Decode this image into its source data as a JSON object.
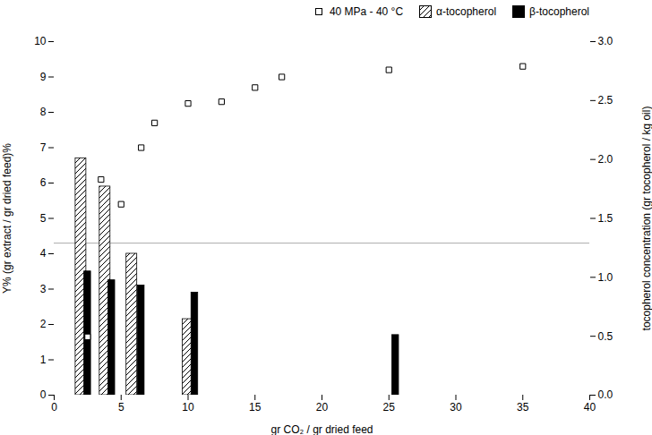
{
  "chart_data": {
    "type": "bar",
    "xlabel": "gr CO₂ / gr dried feed",
    "ylabel": "Y% (gr extract / gr dried feed)%",
    "y2label": "tocopherol concentration (gr tocopherol / kg oil)",
    "xlim": [
      0,
      40
    ],
    "xticks": [
      0,
      5,
      10,
      15,
      20,
      25,
      30,
      35,
      40
    ],
    "ylim": [
      0,
      10
    ],
    "yticks": [
      0,
      1,
      2,
      3,
      4,
      5,
      6,
      7,
      8,
      9,
      10
    ],
    "y2lim": [
      0,
      3
    ],
    "y2ticks": [
      {
        "value": 0,
        "label": "0.0"
      },
      0.5,
      {
        "value": 1,
        "label": "1.0"
      },
      1.5,
      {
        "value": 2,
        "label": "2.0"
      },
      2.5,
      {
        "value": 3,
        "label": "3.0"
      }
    ],
    "grid": false,
    "legend": "upper right",
    "series": [
      {
        "type": "hline",
        "color": "#aaaaaa",
        "values": [
          4.3
        ]
      },
      {
        "name": "40 MPa - 40 °C",
        "type": "scatter",
        "marker": "square",
        "color": "black",
        "x": [
          2.5,
          3.5,
          5.0,
          6.5,
          7.5,
          10.0,
          12.5,
          15.0,
          17.0,
          25.0,
          35.0
        ],
        "values": [
          1.65,
          6.1,
          5.4,
          7.0,
          7.7,
          8.25,
          8.3,
          8.7,
          9.0,
          9.2,
          9.3
        ]
      },
      {
        "name": "α-tocopherol",
        "type": "bar",
        "color": "black",
        "x": [
          2.0,
          3.8,
          5.8,
          10.0
        ],
        "values": [
          6.7,
          5.9,
          4.0,
          2.15
        ]
      },
      {
        "name": "β-tocopherol",
        "type": "bar",
        "color": "black",
        "x": [
          2.5,
          4.3,
          6.5,
          10.5,
          25.5
        ],
        "values": [
          3.5,
          3.25,
          3.1,
          2.9,
          1.7
        ]
      }
    ]
  }
}
